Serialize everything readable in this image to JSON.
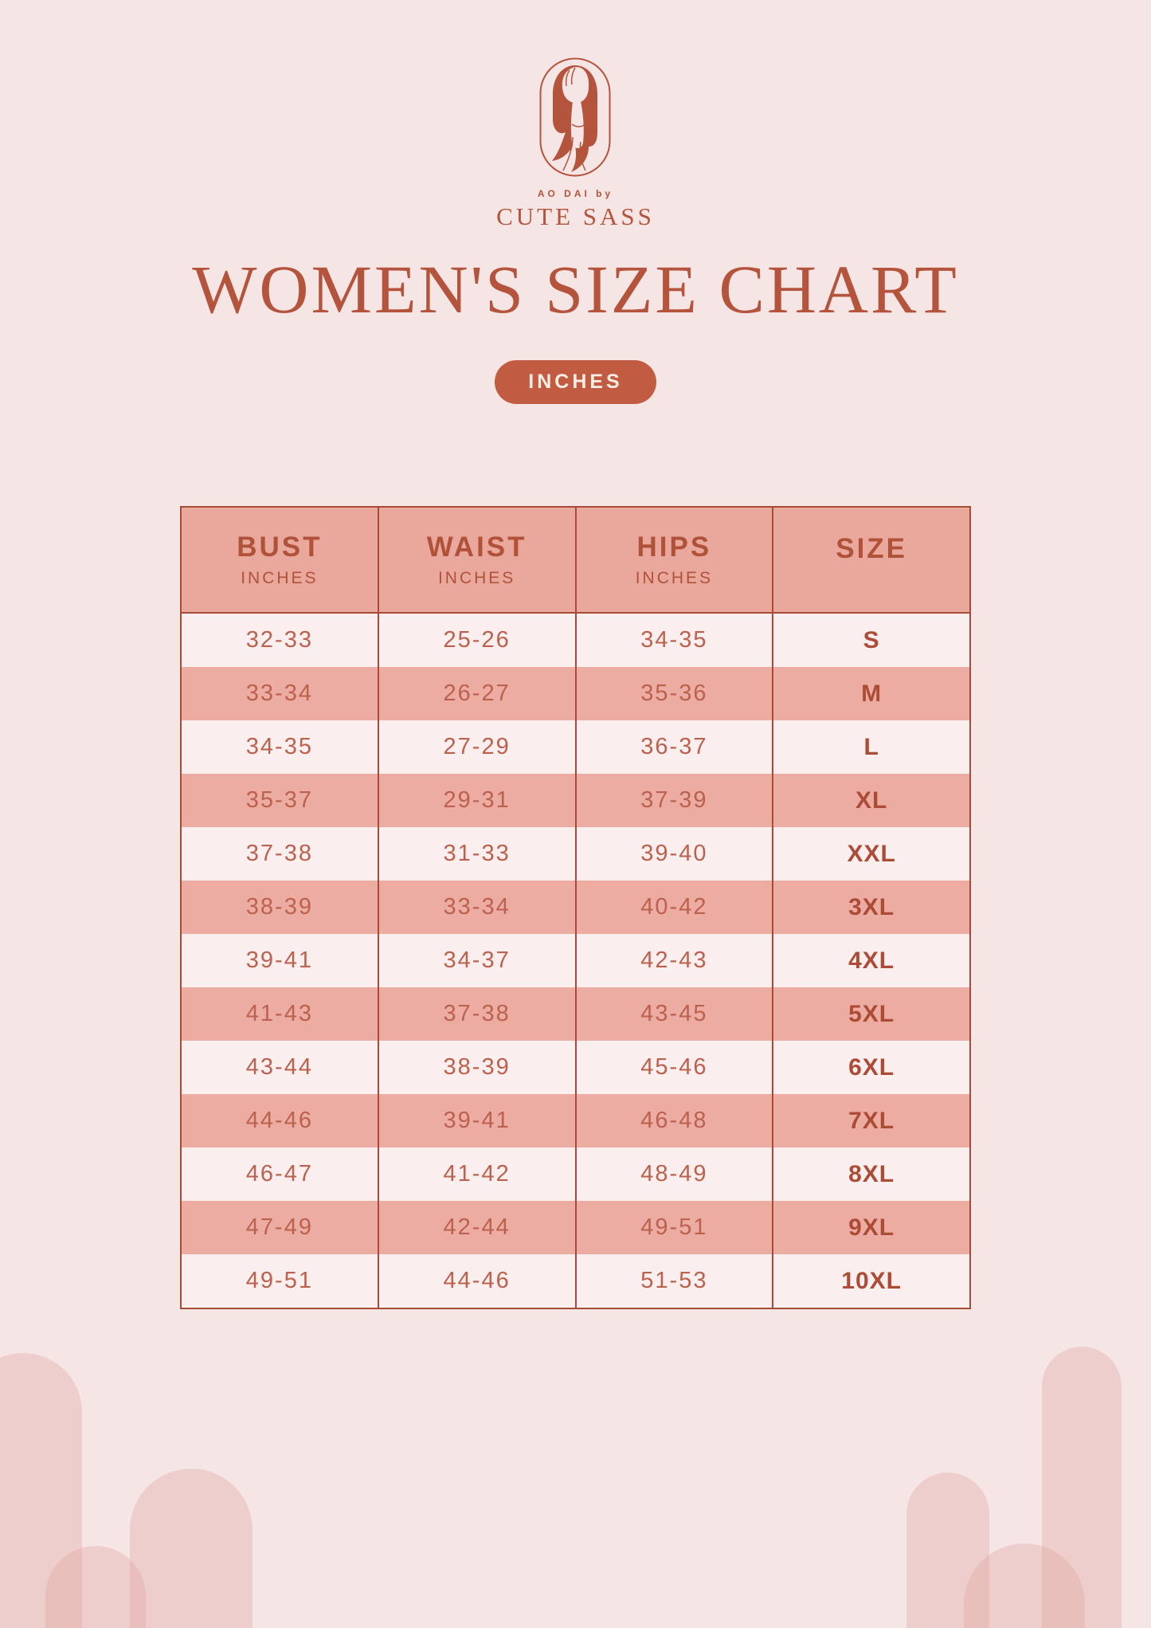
{
  "brand": {
    "tagline": "AO DAI by",
    "name": "CUTE SASS"
  },
  "title": "WOMEN'S SIZE CHART",
  "unit_badge": "INCHES",
  "icons": {
    "logo": "woman-in-ao-dai-capsule-icon"
  },
  "colors": {
    "background": "#f6e5e5",
    "accent_terracotta": "#b5543c",
    "badge_bg": "#c15c43",
    "badge_text": "#f8ece3",
    "table_border": "#a64b35",
    "header_bg": "#eaa89d",
    "row_pink": "#edaca2",
    "row_light": "#fbeeee",
    "number_text": "#bb614e",
    "size_text": "#ad4c36",
    "arch_decoration": "#efd2d0"
  },
  "table": {
    "headers": [
      {
        "label": "BUST",
        "sub": "INCHES"
      },
      {
        "label": "WAIST",
        "sub": "INCHES"
      },
      {
        "label": "HIPS",
        "sub": "INCHES"
      },
      {
        "label": "SIZE",
        "sub": ""
      }
    ],
    "rows": [
      [
        "32-33",
        "25-26",
        "34-35",
        "S"
      ],
      [
        "33-34",
        "26-27",
        "35-36",
        "M"
      ],
      [
        "34-35",
        "27-29",
        "36-37",
        "L"
      ],
      [
        "35-37",
        "29-31",
        "37-39",
        "XL"
      ],
      [
        "37-38",
        "31-33",
        "39-40",
        "XXL"
      ],
      [
        "38-39",
        "33-34",
        "40-42",
        "3XL"
      ],
      [
        "39-41",
        "34-37",
        "42-43",
        "4XL"
      ],
      [
        "41-43",
        "37-38",
        "43-45",
        "5XL"
      ],
      [
        "43-44",
        "38-39",
        "45-46",
        "6XL"
      ],
      [
        "44-46",
        "39-41",
        "46-48",
        "7XL"
      ],
      [
        "46-47",
        "41-42",
        "48-49",
        "8XL"
      ],
      [
        "47-49",
        "42-44",
        "49-51",
        "9XL"
      ],
      [
        "49-51",
        "44-46",
        "51-53",
        "10XL"
      ]
    ]
  },
  "chart_data": {
    "type": "table",
    "title": "WOMEN'S SIZE CHART",
    "unit": "INCHES",
    "columns": [
      "BUST (inches)",
      "WAIST (inches)",
      "HIPS (inches)",
      "SIZE"
    ],
    "rows": [
      [
        "32-33",
        "25-26",
        "34-35",
        "S"
      ],
      [
        "33-34",
        "26-27",
        "35-36",
        "M"
      ],
      [
        "34-35",
        "27-29",
        "36-37",
        "L"
      ],
      [
        "35-37",
        "29-31",
        "37-39",
        "XL"
      ],
      [
        "37-38",
        "31-33",
        "39-40",
        "XXL"
      ],
      [
        "38-39",
        "33-34",
        "40-42",
        "3XL"
      ],
      [
        "39-41",
        "34-37",
        "42-43",
        "4XL"
      ],
      [
        "41-43",
        "37-38",
        "43-45",
        "5XL"
      ],
      [
        "43-44",
        "38-39",
        "45-46",
        "6XL"
      ],
      [
        "44-46",
        "39-41",
        "46-48",
        "7XL"
      ],
      [
        "46-47",
        "41-42",
        "48-49",
        "8XL"
      ],
      [
        "47-49",
        "42-44",
        "49-51",
        "9XL"
      ],
      [
        "49-51",
        "44-46",
        "51-53",
        "10XL"
      ]
    ]
  }
}
